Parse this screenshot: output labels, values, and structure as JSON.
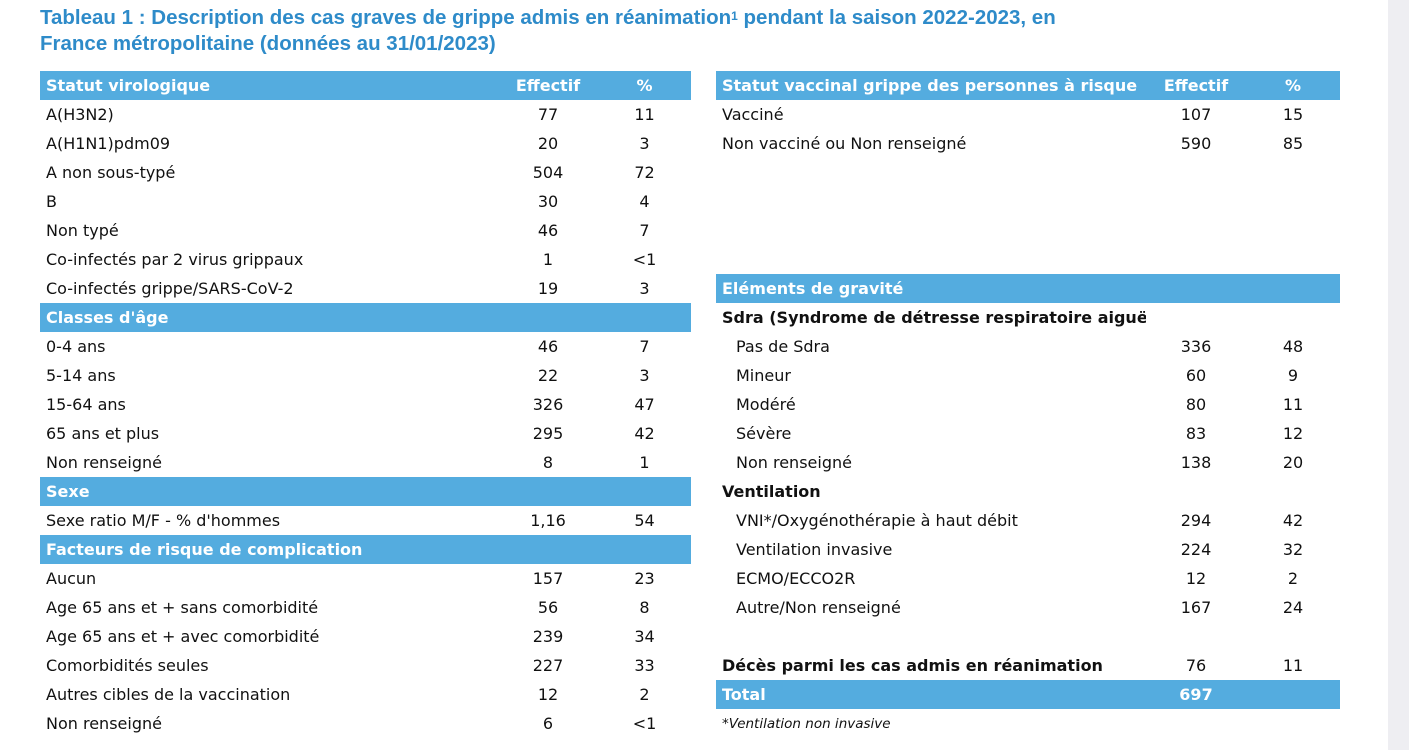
{
  "title_line1": "Tableau 1 : Description des cas graves de grippe admis en réanimation",
  "title_sup": "1",
  "title_line1_end": " pendant la saison 2022-2023, en",
  "title_line2": "France métropolitaine (données au 31/01/2023)",
  "left": {
    "virological": {
      "header": "Statut virologique",
      "col_effectif": "Effectif",
      "col_pct": "%",
      "rows": [
        {
          "label": "A(H3N2)",
          "n": "77",
          "pct": "11"
        },
        {
          "label": "A(H1N1)pdm09",
          "n": "20",
          "pct": "3"
        },
        {
          "label": "A non sous-typé",
          "n": "504",
          "pct": "72"
        },
        {
          "label": "B",
          "n": "30",
          "pct": "4"
        },
        {
          "label": "Non typé",
          "n": "46",
          "pct": "7"
        },
        {
          "label": "Co-infectés par 2 virus grippaux",
          "n": "1",
          "pct": "<1"
        },
        {
          "label": "Co-infectés grippe/SARS-CoV-2",
          "n": "19",
          "pct": "3"
        }
      ]
    },
    "age": {
      "header": "Classes d'âge",
      "rows": [
        {
          "label": "0-4 ans",
          "n": "46",
          "pct": "7"
        },
        {
          "label": "5-14 ans",
          "n": "22",
          "pct": "3"
        },
        {
          "label": "15-64 ans",
          "n": "326",
          "pct": "47"
        },
        {
          "label": "65 ans et plus",
          "n": "295",
          "pct": "42"
        },
        {
          "label": "Non renseigné",
          "n": "8",
          "pct": "1"
        }
      ]
    },
    "sex": {
      "header": "Sexe",
      "rows": [
        {
          "label": "Sexe ratio M/F - % d'hommes",
          "n": "1,16",
          "pct": "54"
        }
      ]
    },
    "risk": {
      "header": "Facteurs de risque de complication",
      "rows": [
        {
          "label": "Aucun",
          "n": "157",
          "pct": "23"
        },
        {
          "label": "Age 65 ans et + sans comorbidité",
          "n": "56",
          "pct": "8"
        },
        {
          "label": "Age 65 ans et + avec comorbidité",
          "n": "239",
          "pct": "34"
        },
        {
          "label": "Comorbidités seules",
          "n": "227",
          "pct": "33"
        },
        {
          "label": "Autres cibles de la vaccination",
          "n": "12",
          "pct": "2"
        },
        {
          "label": "Non renseigné",
          "n": "6",
          "pct": "<1"
        }
      ]
    }
  },
  "right": {
    "vaccine": {
      "header": "Statut vaccinal grippe des personnes à risque",
      "col_effectif": "Effectif",
      "col_pct": "%",
      "rows": [
        {
          "label": "Vacciné",
          "n": "107",
          "pct": "15"
        },
        {
          "label": "Non vacciné ou Non renseigné",
          "n": "590",
          "pct": "85"
        }
      ]
    },
    "severity": {
      "header": "Eléments de gravité",
      "sdra_title": "Sdra (Syndrome de détresse respiratoire aiguë)",
      "sdra_rows": [
        {
          "label": "Pas de Sdra",
          "n": "336",
          "pct": "48"
        },
        {
          "label": "Mineur",
          "n": "60",
          "pct": "9"
        },
        {
          "label": "Modéré",
          "n": "80",
          "pct": "11"
        },
        {
          "label": "Sévère",
          "n": "83",
          "pct": "12"
        },
        {
          "label": "Non renseigné",
          "n": "138",
          "pct": "20"
        }
      ],
      "ventilation_title": "Ventilation",
      "ventilation_rows": [
        {
          "label": "VNI*/Oxygénothérapie à haut débit",
          "n": "294",
          "pct": "42"
        },
        {
          "label": "Ventilation invasive",
          "n": "224",
          "pct": "32"
        },
        {
          "label": "ECMO/ECCO2R",
          "n": "12",
          "pct": "2"
        },
        {
          "label": "Autre/Non renseigné",
          "n": "167",
          "pct": "24"
        }
      ],
      "deaths": {
        "label": "Décès parmi les cas admis en réanimation",
        "n": "76",
        "pct": "11"
      }
    },
    "total": {
      "label": "Total",
      "n": "697"
    },
    "footnote": "*Ventilation non invasive"
  },
  "colors": {
    "header_bg": "#54acdf",
    "title": "#2e8bc9"
  }
}
